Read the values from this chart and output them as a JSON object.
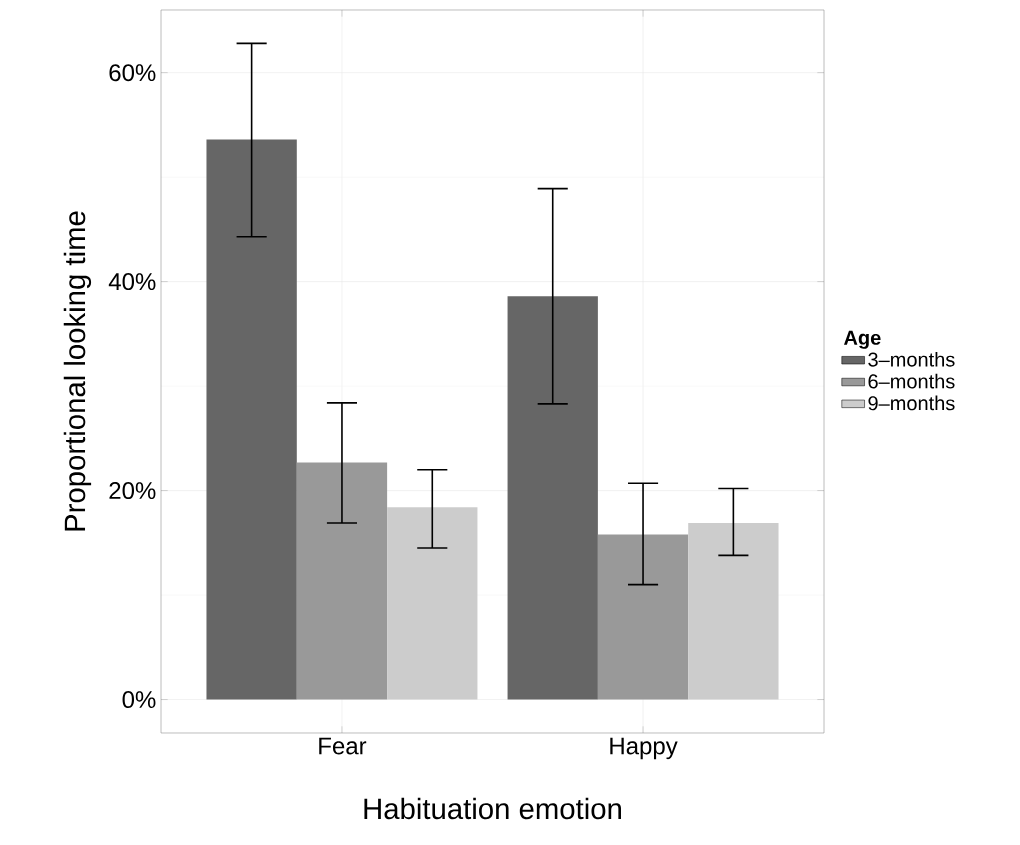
{
  "chart_data": {
    "type": "bar",
    "xlabel": "Habituation emotion",
    "ylabel": "Proportional looking time",
    "legend_title": "Age",
    "categories": [
      "Fear",
      "Happy"
    ],
    "series": [
      {
        "name": "3–months",
        "color": "#666666",
        "values": [
          53.6,
          38.6
        ],
        "errors": [
          [
            44.3,
            62.8
          ],
          [
            28.3,
            48.9
          ]
        ]
      },
      {
        "name": "6–months",
        "color": "#999999",
        "values": [
          22.7,
          15.8
        ],
        "errors": [
          [
            16.9,
            28.4
          ],
          [
            11.0,
            20.7
          ]
        ]
      },
      {
        "name": "9–months",
        "color": "#cccccc",
        "values": [
          18.4,
          16.9
        ],
        "errors": [
          [
            14.5,
            22.0
          ],
          [
            13.8,
            20.2
          ]
        ]
      }
    ],
    "ylim": [
      -3.2,
      66.0
    ],
    "yticks": [
      {
        "value": 0,
        "label": "0%"
      },
      {
        "value": 20,
        "label": "20%"
      },
      {
        "value": 40,
        "label": "40%"
      },
      {
        "value": 60,
        "label": "60%"
      }
    ],
    "grid": true,
    "legend": "right"
  }
}
